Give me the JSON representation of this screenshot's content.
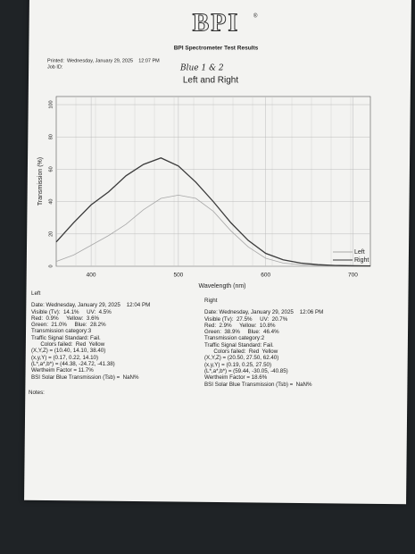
{
  "header": {
    "logo": "BPI",
    "logo_mark": "®",
    "subtitle": "BPI Spectrometer Test Results",
    "printed": "Printed:  Wednesday, January 29, 2025    12:07 PM",
    "job_id": "Job ID:",
    "handwritten": "Blue 1 & 2"
  },
  "chart_data": {
    "type": "line",
    "title": "Left and Right",
    "x_label": "Wavelength (nm)",
    "y_label": "Transmission (%)",
    "x": [
      360,
      380,
      400,
      420,
      440,
      460,
      480,
      500,
      520,
      540,
      560,
      580,
      600,
      620,
      640,
      660,
      680,
      700,
      720
    ],
    "series": [
      {
        "name": "Left",
        "color": "#a8a8a8",
        "values": [
          3,
          7,
          13,
          19,
          26,
          35,
          42,
          44,
          42,
          34,
          22,
          12,
          5,
          2,
          1,
          0.5,
          0.2,
          0.1,
          0
        ]
      },
      {
        "name": "Right",
        "color": "#3a3a3a",
        "values": [
          15,
          27,
          38,
          46,
          56,
          63,
          67,
          62,
          52,
          40,
          27,
          16,
          8,
          4,
          2,
          1,
          0.5,
          0.3,
          0.2
        ]
      }
    ],
    "xlim": [
      360,
      720
    ],
    "xticks": [
      400,
      500,
      600,
      700
    ],
    "ylim": [
      0,
      105
    ],
    "yticks": [
      0,
      20,
      40,
      60,
      80,
      100
    ],
    "grid": true,
    "legend": "lower right"
  },
  "left_results": {
    "title": "Left",
    "lines": [
      "Date: Wednesday, January 29, 2025    12:04 PM",
      "Visible (Tv):  14.1%     UV:  4.5%",
      "Red:  0.9%     Yellow:  3.6%",
      "Green:  21.0%     Blue:  28.2%",
      "Transmission category:3",
      "Traffic Signal Standard: Fail.",
      "      Colors failed:  Red  Yellow",
      "(X,Y,Z) = (10.40, 14.10, 38.40)",
      "(x,y,Y) = (0.17, 0.22, 14.10)",
      "(L*,a*,b*) = (44.38, -24.72, -41.38)",
      "Wertheim Factor = 11.7%",
      "BSI Solar Blue Transmission (Tsb) =  NaN%"
    ]
  },
  "right_results": {
    "title": "Right",
    "lines": [
      "Date: Wednesday, January 29, 2025    12:06 PM",
      "Visible (Tv):  27.5%     UV:  20.7%",
      "Red:  2.9%     Yellow:  10.8%",
      "Green:  38.9%     Blue:  46.4%",
      "Transmission category:2",
      "Traffic Signal Standard: Fail.",
      "      Colors failed:  Red  Yellow",
      "(X,Y,Z) = (20.50, 27.50, 62.40)",
      "(x,y,Y) = (0.19, 0.25, 27.50)",
      "(L*,a*,b*) = (59.44, -30.05, -40.85)",
      "Wertheim Factor = 18.6%",
      "BSI Solar Blue Transmission (Tsb) =  NaN%"
    ]
  },
  "notes": "Notes:"
}
